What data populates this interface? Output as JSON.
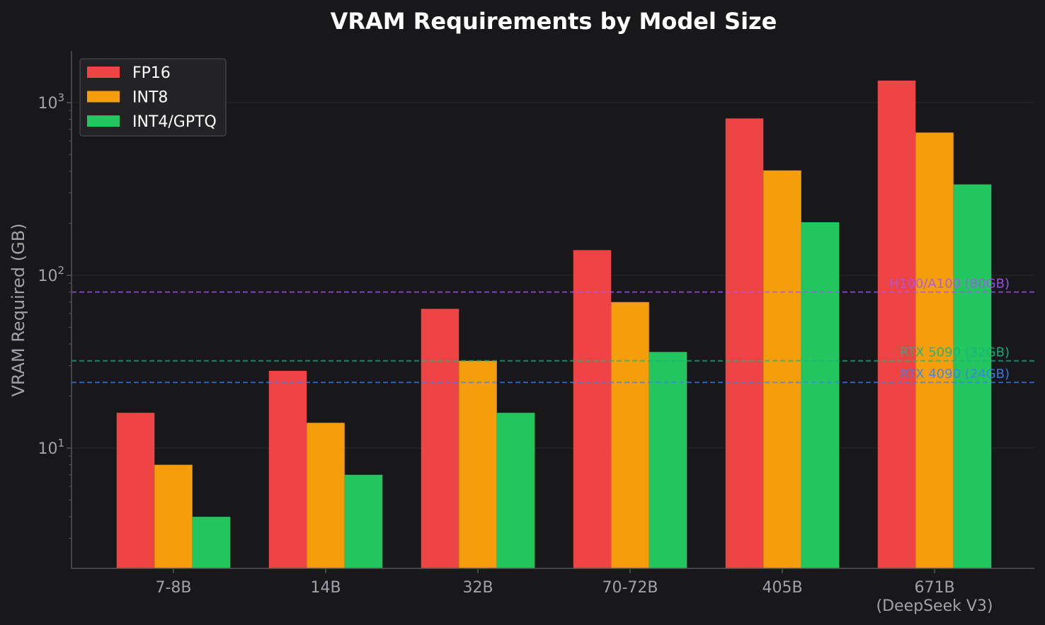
{
  "chart_data": {
    "type": "bar",
    "title": "VRAM Requirements by Model Size",
    "xlabel": "",
    "ylabel": "VRAM Required (GB)",
    "yscale": "log",
    "ylim": [
      2,
      2000
    ],
    "y_ticks": [
      {
        "value": 10,
        "base": "10",
        "exp": "1"
      },
      {
        "value": 100,
        "base": "10",
        "exp": "2"
      },
      {
        "value": 1000,
        "base": "10",
        "exp": "3"
      }
    ],
    "categories": [
      {
        "line1": "7-8B",
        "line2": ""
      },
      {
        "line1": "14B",
        "line2": ""
      },
      {
        "line1": "32B",
        "line2": ""
      },
      {
        "line1": "70-72B",
        "line2": ""
      },
      {
        "line1": "405B",
        "line2": ""
      },
      {
        "line1": "671B",
        "line2": "(DeepSeek V3)"
      }
    ],
    "series": [
      {
        "name": "FP16",
        "color": "#ef4444",
        "values": [
          16,
          28,
          64,
          140,
          810,
          1342
        ]
      },
      {
        "name": "INT8",
        "color": "#f59e0b",
        "values": [
          8,
          14,
          32,
          70,
          405,
          671
        ]
      },
      {
        "name": "INT4/GPTQ",
        "color": "#22c55e",
        "values": [
          4,
          7,
          16,
          36,
          203,
          336
        ]
      }
    ],
    "reference_lines": [
      {
        "label": "H100/A100 (80GB)",
        "value": 80,
        "color": "#a855f7"
      },
      {
        "label": "RTX 5090 (32GB)",
        "value": 32,
        "color": "#10b981"
      },
      {
        "label": "RTX 4090 (24GB)",
        "value": 24,
        "color": "#3b82f6"
      }
    ],
    "legend_position": "top-left",
    "grid": true
  }
}
